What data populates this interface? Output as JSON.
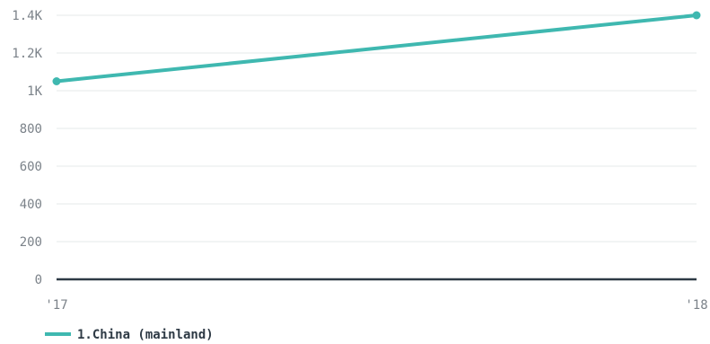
{
  "chart_data": {
    "type": "line",
    "title": "",
    "xlabel": "",
    "ylabel": "",
    "categories": [
      "'17",
      "'18"
    ],
    "y_ticks": [
      "0",
      "200",
      "400",
      "600",
      "800",
      "1K",
      "1.2K",
      "1.4K"
    ],
    "y_tick_values": [
      0,
      200,
      400,
      600,
      800,
      1000,
      1200,
      1400
    ],
    "ylim": [
      0,
      1400
    ],
    "grid": true,
    "legend_position": "bottom-left",
    "series": [
      {
        "name": "1.China (mainland)",
        "color": "#3fb8b0",
        "values": [
          1050,
          1400
        ]
      }
    ],
    "baseline_color": "#2e3a45"
  }
}
